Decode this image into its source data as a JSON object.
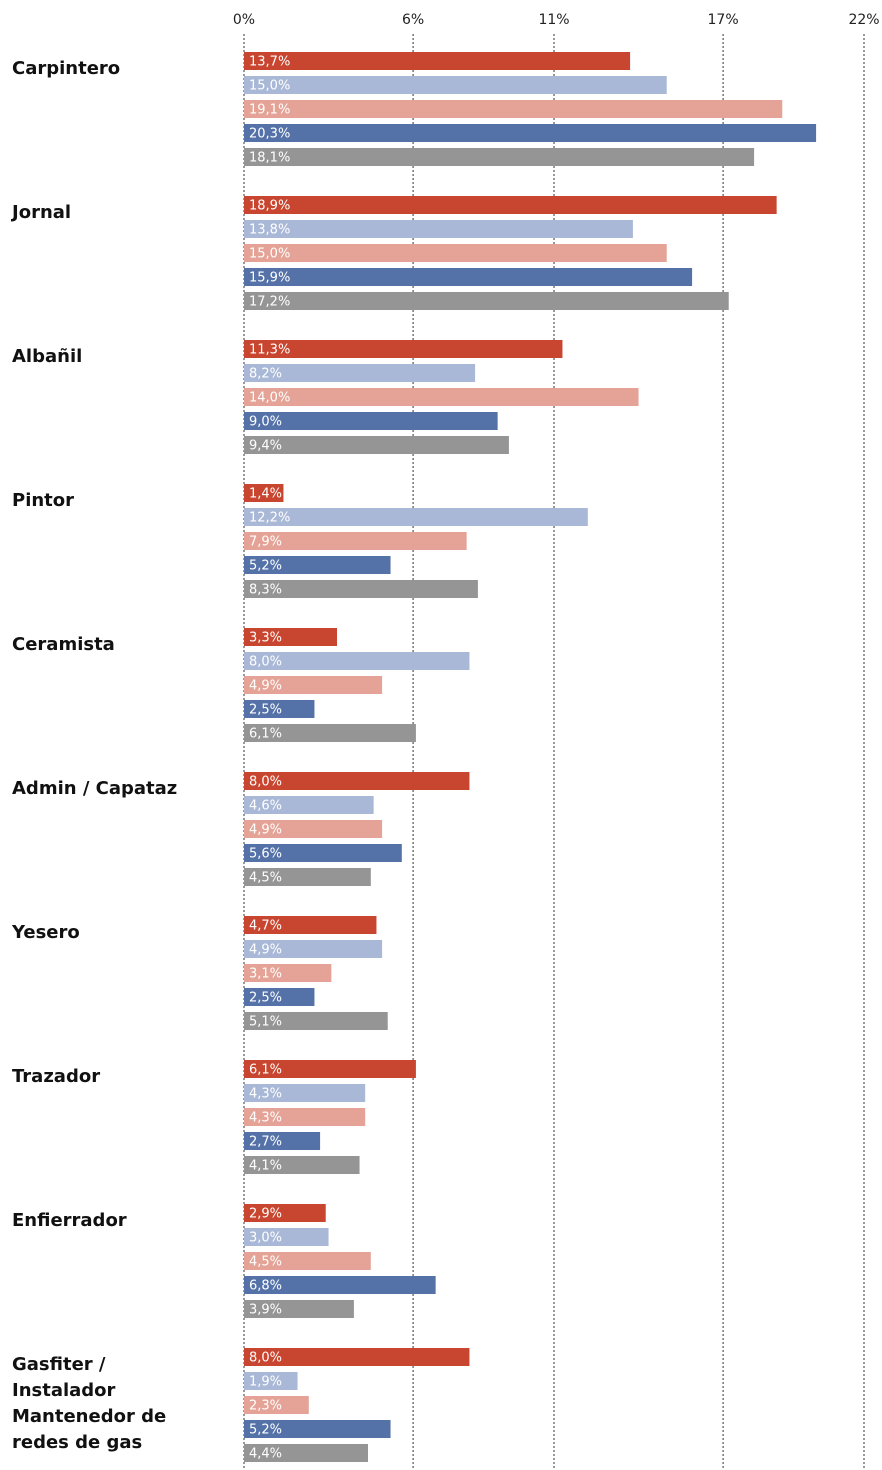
{
  "chart_data": {
    "type": "bar",
    "orientation": "horizontal",
    "categories": [
      "Carpintero",
      "Jornal",
      "Albañil",
      "Pintor",
      "Ceramista",
      "Admin / Capataz",
      "Yesero",
      "Trazador",
      "Enfierrador",
      "Gasfiter / Instalador Mantenedor de redes de gas"
    ],
    "series": [
      {
        "color": "#c8452f",
        "values": [
          13.7,
          18.9,
          11.3,
          1.4,
          3.3,
          8.0,
          4.7,
          6.1,
          2.9,
          8.0
        ],
        "value_labels": [
          "13,7%",
          "18,9%",
          "11,3%",
          "1,4%",
          "3,3%",
          "8,0%",
          "4,7%",
          "6,1%",
          "2,9%",
          "8,0%"
        ]
      },
      {
        "color": "#a9b8d6",
        "values": [
          15.0,
          13.8,
          8.2,
          12.2,
          8.0,
          4.6,
          4.9,
          4.3,
          3.0,
          1.9
        ],
        "value_labels": [
          "15,0%",
          "13,8%",
          "8,2%",
          "12,2%",
          "8,0%",
          "4,6%",
          "4,9%",
          "4,3%",
          "3,0%",
          "1,9%"
        ]
      },
      {
        "color": "#e4a396",
        "values": [
          19.1,
          15.0,
          14.0,
          7.9,
          4.9,
          4.9,
          3.1,
          4.3,
          4.5,
          2.3
        ],
        "value_labels": [
          "19,1%",
          "15,0%",
          "14,0%",
          "7,9%",
          "4,9%",
          "4,9%",
          "3,1%",
          "4,3%",
          "4,5%",
          "2,3%"
        ]
      },
      {
        "color": "#5572a8",
        "values": [
          20.3,
          15.9,
          9.0,
          5.2,
          2.5,
          5.6,
          2.5,
          2.7,
          6.8,
          5.2
        ],
        "value_labels": [
          "20,3%",
          "15,9%",
          "9,0%",
          "5,2%",
          "2,5%",
          "5,6%",
          "2,5%",
          "2,7%",
          "6,8%",
          "5,2%"
        ]
      },
      {
        "color": "#959595",
        "values": [
          18.1,
          17.2,
          9.4,
          8.3,
          6.1,
          4.5,
          5.1,
          4.1,
          3.9,
          4.4
        ],
        "value_labels": [
          "18,1%",
          "17,2%",
          "9,4%",
          "8,3%",
          "6,1%",
          "4,5%",
          "5,1%",
          "4,1%",
          "3,9%",
          "4,4%"
        ]
      }
    ],
    "xlim": [
      0,
      22
    ],
    "xticks": [
      {
        "value": 0,
        "label": "0%"
      },
      {
        "value": 6,
        "label": "6%"
      },
      {
        "value": 11,
        "label": "11%"
      },
      {
        "value": 17,
        "label": "17%"
      },
      {
        "value": 22,
        "label": "22%"
      }
    ],
    "grid": true
  }
}
